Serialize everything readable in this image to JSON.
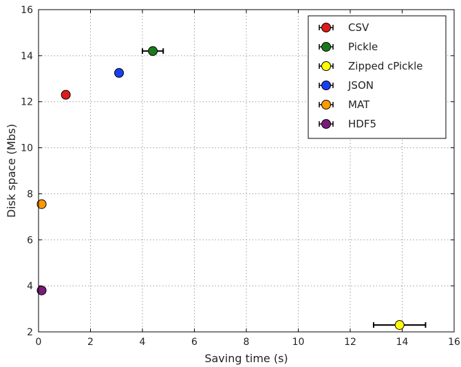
{
  "chart_data": {
    "type": "scatter",
    "title": "",
    "xlabel": "Saving time (s)",
    "ylabel": "Disk space (Mbs)",
    "xlim": [
      0,
      16
    ],
    "ylim": [
      2,
      16
    ],
    "xticks": [
      "0",
      "2",
      "4",
      "6",
      "8",
      "10",
      "12",
      "14",
      "16"
    ],
    "yticks": [
      "2",
      "4",
      "6",
      "8",
      "10",
      "12",
      "14",
      "16"
    ],
    "grid": true,
    "legend_position": "top-right",
    "series": [
      {
        "name": "CSV",
        "color": "#dd1c1c",
        "x": 1.05,
        "y": 12.3,
        "xerr": 0
      },
      {
        "name": "Pickle",
        "color": "#1a7a1a",
        "x": 4.4,
        "y": 14.2,
        "xerr": 0.4
      },
      {
        "name": "Zipped cPickle",
        "color": "#ffff00",
        "x": 13.9,
        "y": 2.3,
        "xerr": 1.0
      },
      {
        "name": "JSON",
        "color": "#1a3ff2",
        "x": 3.1,
        "y": 13.25,
        "xerr": 0
      },
      {
        "name": "MAT",
        "color": "#ff9900",
        "x": 0.12,
        "y": 7.55,
        "xerr": 0
      },
      {
        "name": "HDF5",
        "color": "#7a1a7a",
        "x": 0.12,
        "y": 3.8,
        "xerr": 0
      }
    ]
  }
}
